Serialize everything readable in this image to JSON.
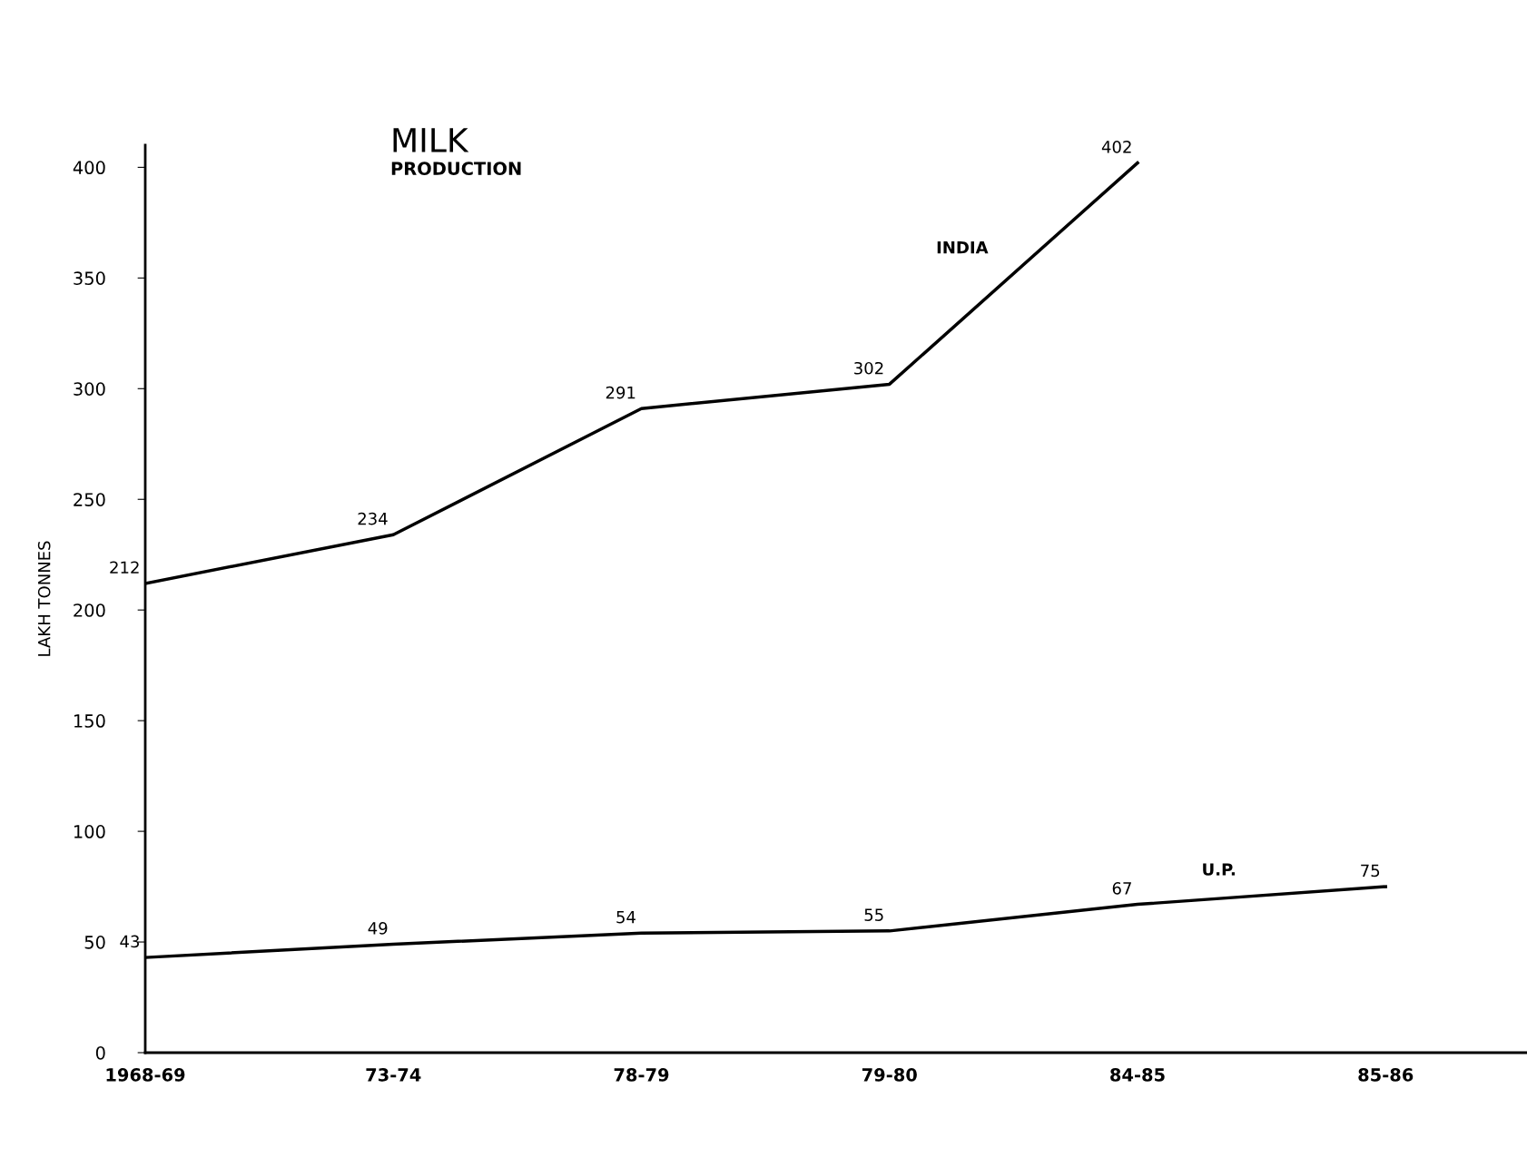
{
  "chart_data": {
    "type": "line",
    "title": "MILK",
    "subtitle": "PRODUCTION",
    "ylabel": "LAKH TONNES",
    "categories": [
      "1968-69",
      "73-74",
      "78-79",
      "79-80",
      "84-85",
      "85-86"
    ],
    "series": [
      {
        "name": "INDIA",
        "color": "#000000",
        "values": [
          212,
          234,
          291,
          302,
          402,
          null
        ]
      },
      {
        "name": "U.P.",
        "color": "#000000",
        "values": [
          43,
          49,
          54,
          55,
          67,
          75
        ]
      }
    ],
    "ylim": [
      0,
      410
    ],
    "yticks": [
      0,
      50,
      100,
      150,
      200,
      250,
      300,
      350,
      400
    ],
    "data_labels": true,
    "grid": false,
    "legend": false,
    "marker": "none",
    "line_style": "solid"
  }
}
